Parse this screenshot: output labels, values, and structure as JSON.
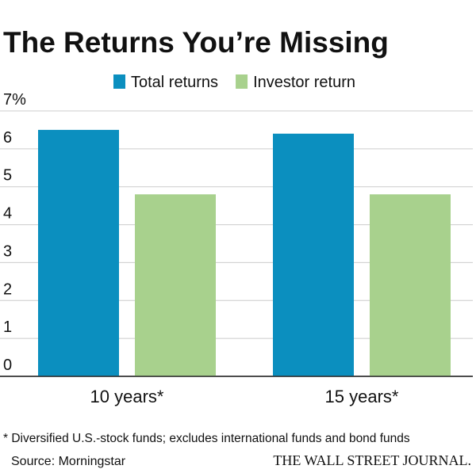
{
  "chart_data": {
    "type": "bar",
    "title": "The Returns You’re Missing",
    "categories": [
      "10 years*",
      "15 years*"
    ],
    "series": [
      {
        "name": "Total returns",
        "color": "#0b8fbf",
        "values": [
          6.5,
          6.4
        ]
      },
      {
        "name": "Investor return",
        "color": "#a8d18d",
        "values": [
          4.8,
          4.8
        ]
      }
    ],
    "ylim": [
      0,
      7
    ],
    "yticks": [
      0,
      1,
      2,
      3,
      4,
      5,
      6,
      {
        "value": 7,
        "label": "7%"
      }
    ],
    "grid": true,
    "footnote": "* Diversified U.S.-stock funds; excludes international funds and bond funds",
    "source": "Source: Morningstar",
    "publisher": "THE WALL STREET JOURNAL."
  }
}
